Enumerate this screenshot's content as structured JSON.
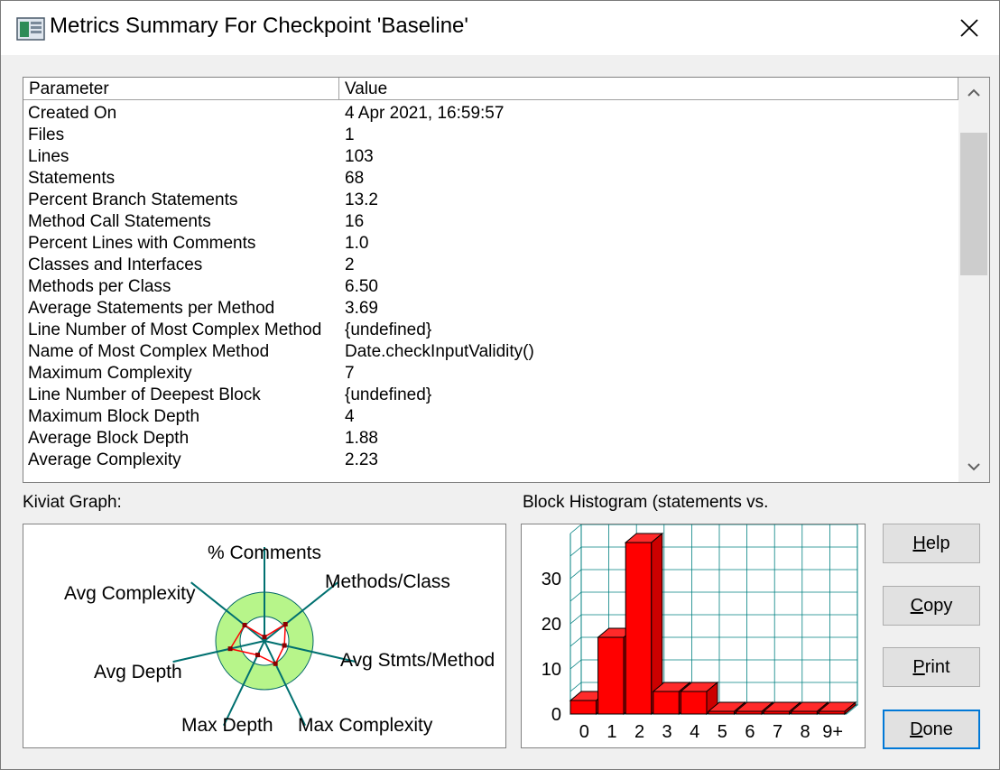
{
  "window": {
    "title": "Metrics Summary For Checkpoint 'Baseline'"
  },
  "table": {
    "columns": [
      "Parameter",
      "Value"
    ],
    "rows": [
      [
        "Created On",
        "4 Apr 2021, 16:59:57"
      ],
      [
        "Files",
        "1"
      ],
      [
        "Lines",
        "103"
      ],
      [
        "Statements",
        "68"
      ],
      [
        "Percent Branch Statements",
        "13.2"
      ],
      [
        "Method Call Statements",
        "16"
      ],
      [
        "Percent Lines with Comments",
        "1.0"
      ],
      [
        "Classes and Interfaces",
        "2"
      ],
      [
        "Methods per Class",
        "6.50"
      ],
      [
        "Average Statements per Method",
        "3.69"
      ],
      [
        "Line Number of Most Complex Method",
        "{undefined}"
      ],
      [
        "Name of Most Complex Method",
        "Date.checkInputValidity()"
      ],
      [
        "Maximum Complexity",
        "7"
      ],
      [
        "Line Number of Deepest Block",
        "{undefined}"
      ],
      [
        "Maximum Block Depth",
        "4"
      ],
      [
        "Average Block Depth",
        "1.88"
      ],
      [
        "Average Complexity",
        "2.23"
      ]
    ]
  },
  "kiviat": {
    "label": "Kiviat Graph:",
    "axes": [
      "% Comments",
      "Methods/Class",
      "Avg Stmts/Method",
      "Max Complexity",
      "Max Depth",
      "Avg Depth",
      "Avg Complexity"
    ],
    "ring_color": "#b7f58a",
    "polygon_color": "#ff0000"
  },
  "histogram": {
    "label": "Block Histogram (statements vs.",
    "bar_color": "#ff0000"
  },
  "buttons": {
    "help": {
      "pre": "",
      "key": "H",
      "post": "elp"
    },
    "copy": {
      "pre": "",
      "key": "C",
      "post": "opy"
    },
    "print": {
      "pre": "",
      "key": "P",
      "post": "rint"
    },
    "done": {
      "pre": "",
      "key": "D",
      "post": "one"
    }
  },
  "chart_data": {
    "type": "bar",
    "categories": [
      "0",
      "1",
      "2",
      "3",
      "4",
      "5",
      "6",
      "7",
      "8",
      "9+"
    ],
    "values": [
      3,
      17,
      38,
      5,
      5,
      0,
      0,
      0,
      0,
      0
    ],
    "title": "Block Histogram (statements vs.",
    "xlabel": "",
    "ylabel": "",
    "ylim": [
      0,
      40
    ],
    "yticks": [
      0,
      10,
      20,
      30
    ],
    "grid": true
  }
}
